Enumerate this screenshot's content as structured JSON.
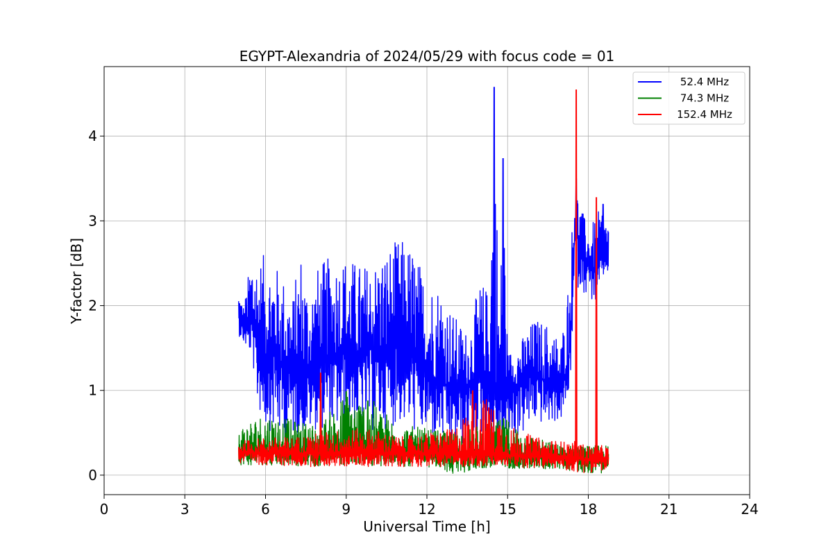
{
  "chart_data": {
    "type": "line",
    "title": "EGYPT-Alexandria of 2024/05/29 with focus code = 01",
    "xlabel": "Universal Time [h]",
    "ylabel": "Y-factor [dB]",
    "xlim": [
      0,
      24
    ],
    "ylim": [
      -0.23,
      4.82
    ],
    "xticks": [
      0,
      3,
      6,
      9,
      12,
      15,
      18,
      21,
      24
    ],
    "yticks": [
      0,
      1,
      2,
      3,
      4
    ],
    "grid": true,
    "legend_position": "top-right",
    "series": [
      {
        "name": "52.4 MHz",
        "color": "#0000ff",
        "x": [
          5.0,
          5.2,
          5.5,
          5.7,
          6.0,
          6.3,
          6.6,
          7.0,
          7.3,
          7.6,
          8.0,
          8.5,
          9.0,
          9.5,
          10.0,
          10.5,
          11.0,
          11.5,
          12.0,
          12.5,
          13.0,
          13.5,
          14.0,
          14.3,
          14.5,
          14.7,
          14.85,
          15.0,
          15.5,
          16.0,
          16.5,
          17.0,
          17.3,
          17.5,
          17.7,
          18.0,
          18.3,
          18.5,
          18.75
        ],
        "y": [
          1.9,
          1.7,
          1.8,
          1.5,
          1.4,
          1.5,
          1.3,
          1.2,
          1.3,
          1.2,
          1.35,
          1.4,
          1.45,
          1.4,
          1.5,
          1.45,
          1.55,
          1.4,
          1.2,
          1.1,
          1.0,
          1.05,
          1.2,
          1.1,
          1.1,
          1.05,
          1.0,
          1.0,
          1.1,
          1.25,
          1.05,
          1.0,
          1.4,
          2.9,
          2.7,
          2.5,
          2.4,
          2.6,
          2.6
        ],
        "low": [
          1.65,
          1.55,
          1.4,
          0.8,
          0.55,
          0.5,
          0.4,
          0.45,
          0.45,
          0.5,
          0.55,
          0.5,
          0.6,
          0.55,
          0.5,
          0.55,
          0.6,
          0.5,
          0.45,
          0.4,
          0.3,
          0.35,
          0.45,
          0.4,
          0.05,
          0.3,
          0.25,
          0.4,
          0.45,
          0.6,
          0.6,
          0.65,
          0.9,
          2.2,
          2.2,
          2.1,
          2.0,
          2.3,
          2.4
        ],
        "high": [
          2.2,
          2.0,
          2.7,
          2.6,
          2.6,
          2.5,
          2.4,
          2.1,
          2.7,
          2.2,
          2.5,
          2.6,
          2.6,
          2.5,
          2.5,
          2.7,
          2.8,
          2.7,
          2.3,
          2.3,
          1.9,
          1.7,
          2.3,
          2.2,
          4.58,
          1.9,
          3.74,
          1.45,
          1.6,
          1.85,
          1.8,
          1.6,
          2.45,
          3.5,
          3.2,
          2.9,
          3.05,
          3.2,
          3.0
        ],
        "spikes": [
          [
            14.5,
            4.58
          ],
          [
            14.83,
            3.74
          ],
          [
            17.55,
            3.5
          ],
          [
            18.55,
            3.2
          ]
        ]
      },
      {
        "name": "74.3 MHz",
        "color": "#008000",
        "x": [
          5.0,
          6.0,
          7.0,
          8.0,
          9.0,
          10.0,
          11.0,
          12.0,
          13.0,
          14.0,
          15.0,
          16.0,
          17.0,
          18.0,
          18.75
        ],
        "y": [
          0.28,
          0.27,
          0.27,
          0.27,
          0.28,
          0.28,
          0.27,
          0.26,
          0.25,
          0.24,
          0.23,
          0.22,
          0.22,
          0.2,
          0.2
        ],
        "low": [
          0.12,
          0.12,
          0.1,
          0.1,
          0.12,
          0.11,
          0.1,
          0.1,
          0.0,
          0.08,
          0.08,
          0.07,
          0.07,
          0.02,
          0.03
        ],
        "high": [
          0.58,
          0.75,
          0.65,
          0.6,
          0.99,
          0.88,
          0.6,
          0.55,
          0.5,
          0.6,
          0.67,
          0.45,
          0.35,
          0.35,
          0.35
        ],
        "spikes": [
          [
            9.0,
            0.99
          ],
          [
            9.8,
            0.88
          ],
          [
            14.85,
            0.67
          ]
        ]
      },
      {
        "name": "152.4 MHz",
        "color": "#ff0000",
        "x": [
          5.0,
          6.0,
          7.0,
          8.0,
          9.0,
          10.0,
          11.0,
          12.0,
          13.0,
          14.0,
          15.0,
          16.0,
          17.0,
          17.5,
          18.0,
          18.75
        ],
        "y": [
          0.27,
          0.26,
          0.26,
          0.26,
          0.26,
          0.26,
          0.26,
          0.26,
          0.25,
          0.24,
          0.23,
          0.22,
          0.22,
          0.2,
          0.18,
          0.2
        ],
        "low": [
          0.12,
          0.12,
          0.1,
          0.1,
          0.1,
          0.1,
          0.1,
          0.1,
          0.1,
          0.1,
          0.1,
          0.08,
          0.07,
          0.03,
          0.03,
          0.05
        ],
        "high": [
          0.4,
          0.45,
          0.45,
          0.5,
          0.55,
          0.55,
          0.45,
          0.5,
          0.55,
          1.0,
          0.6,
          0.45,
          0.4,
          0.4,
          0.35,
          0.35
        ],
        "spikes": [
          [
            8.05,
            1.21
          ],
          [
            13.7,
            1.0
          ],
          [
            14.3,
            0.8
          ],
          [
            17.55,
            4.55
          ],
          [
            18.3,
            3.28
          ]
        ]
      }
    ]
  }
}
